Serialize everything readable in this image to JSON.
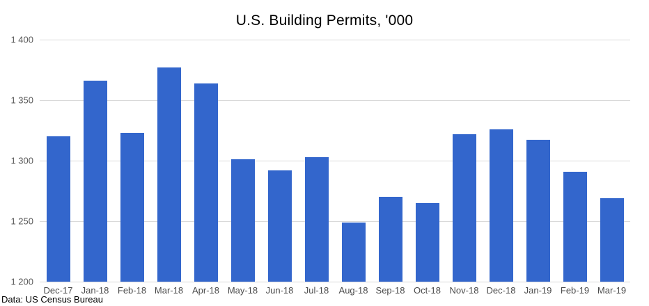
{
  "chart_data": {
    "type": "bar",
    "title": "U.S. Building Permits, '000",
    "source_note": "Data: US Census Bureau",
    "xlabel": "",
    "ylabel": "",
    "grid": true,
    "legend": null,
    "ylim": [
      1200,
      1400
    ],
    "y_tick_interval": 50,
    "y_ticks": [
      {
        "value": 1400,
        "label": "1 400"
      },
      {
        "value": 1350,
        "label": "1 350"
      },
      {
        "value": 1300,
        "label": "1 300"
      },
      {
        "value": 1250,
        "label": "1 250"
      },
      {
        "value": 1200,
        "label": "1 200"
      }
    ],
    "categories": [
      "Dec-17",
      "Jan-18",
      "Feb-18",
      "Mar-18",
      "Apr-18",
      "May-18",
      "Jun-18",
      "Jul-18",
      "Aug-18",
      "Sep-18",
      "Oct-18",
      "Nov-18",
      "Dec-18",
      "Jan-19",
      "Feb-19",
      "Mar-19"
    ],
    "values": [
      1320,
      1366,
      1323,
      1377,
      1364,
      1301,
      1292,
      1303,
      1249,
      1270,
      1265,
      1322,
      1326,
      1317,
      1291,
      1269
    ],
    "colors": {
      "bar": "#3366CC",
      "gridline": "#D9D9D9",
      "y_tick_label": "#595959",
      "x_tick_label": "#4A4A4A",
      "title": "#000000",
      "source_note": "#000000",
      "background": "#FFFFFF"
    }
  }
}
